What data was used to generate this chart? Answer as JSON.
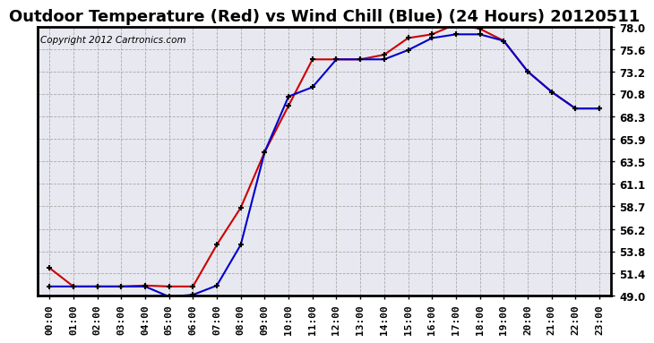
{
  "title": "Outdoor Temperature (Red) vs Wind Chill (Blue) (24 Hours) 20120511",
  "copyright": "Copyright 2012 Cartronics.com",
  "x_labels": [
    "00:00",
    "01:00",
    "02:00",
    "03:00",
    "04:00",
    "05:00",
    "06:00",
    "07:00",
    "08:00",
    "09:00",
    "10:00",
    "11:00",
    "12:00",
    "13:00",
    "14:00",
    "15:00",
    "16:00",
    "17:00",
    "18:00",
    "19:00",
    "20:00",
    "21:00",
    "22:00",
    "23:00"
  ],
  "red_temp": [
    52.0,
    50.0,
    50.0,
    50.0,
    50.1,
    50.0,
    50.0,
    54.5,
    58.5,
    64.5,
    69.5,
    74.5,
    74.5,
    74.5,
    75.0,
    76.8,
    77.2,
    78.3,
    77.8,
    76.5,
    73.2,
    71.0,
    69.2,
    69.2
  ],
  "blue_wc": [
    50.0,
    50.0,
    50.0,
    50.0,
    50.0,
    48.9,
    49.1,
    50.1,
    54.5,
    64.5,
    70.5,
    71.5,
    74.5,
    74.5,
    74.5,
    75.5,
    76.8,
    77.2,
    77.2,
    76.5,
    73.2,
    71.0,
    69.2,
    69.2
  ],
  "ylim": [
    49.0,
    78.0
  ],
  "yticks": [
    49.0,
    51.4,
    53.8,
    56.2,
    58.7,
    61.1,
    63.5,
    65.9,
    68.3,
    70.8,
    73.2,
    75.6,
    78.0
  ],
  "bg_color": "#ffffff",
  "plot_bg_color": "#e8e8f0",
  "grid_color": "#aaaaaa",
  "red_color": "#cc0000",
  "blue_color": "#0000cc",
  "marker": "+",
  "marker_color": "#000000",
  "marker_size": 5,
  "marker_linewidth": 1.5,
  "line_width": 1.5,
  "title_fontsize": 13,
  "tick_fontsize": 8,
  "copyright_fontsize": 7.5
}
